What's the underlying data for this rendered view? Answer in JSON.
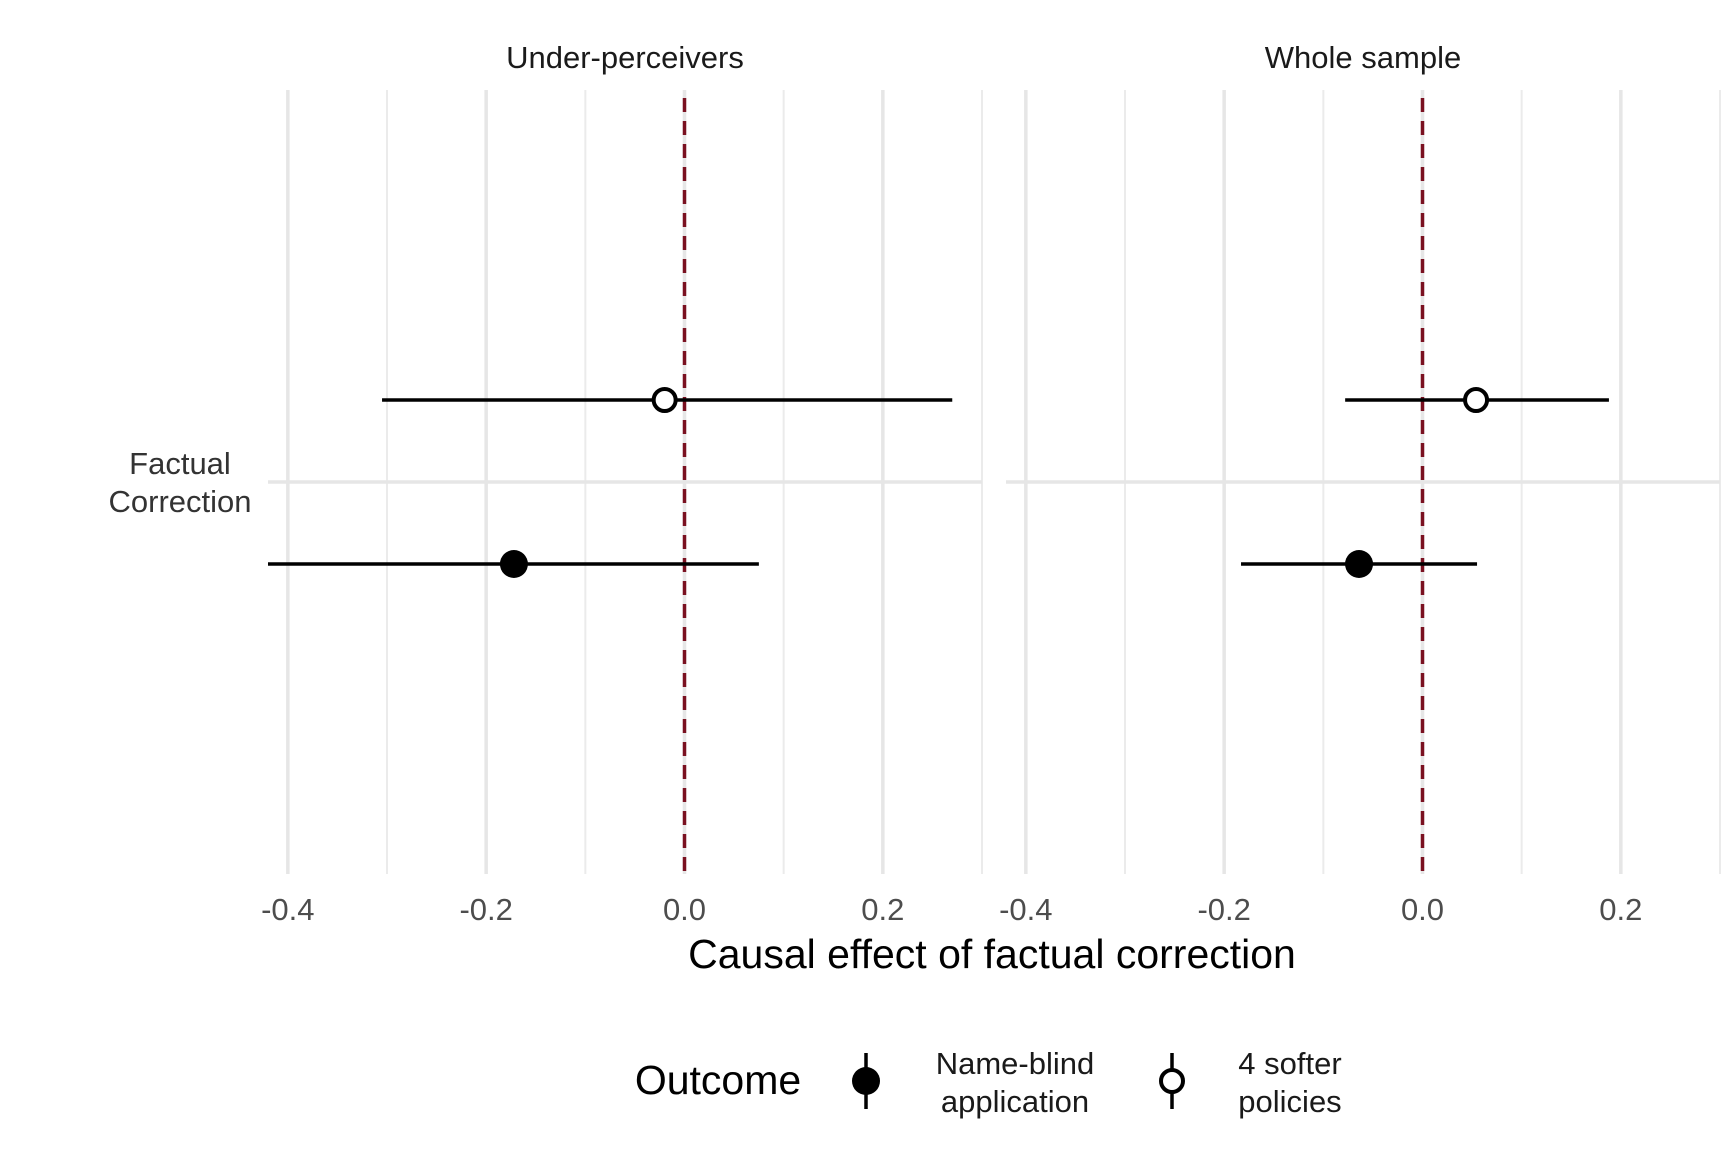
{
  "chart_data": {
    "type": "forest",
    "xlabel": "Causal effect of factual correction",
    "category": "Factual\nCorrection",
    "xlim": [
      -0.42,
      0.3
    ],
    "xticks": [
      -0.4,
      -0.2,
      0.0,
      0.2
    ],
    "xtick_labels": [
      "-0.4",
      "-0.2",
      "0.0",
      "0.2"
    ],
    "grid": true,
    "reference_line": {
      "x": 0.0,
      "color": "#7a1020",
      "style": "dashed"
    },
    "legend": {
      "title": "Outcome",
      "position": "bottom",
      "entries": [
        {
          "label": "Name-blind\napplication",
          "marker": "filled"
        },
        {
          "label": "4 softer\npolicies",
          "marker": "open"
        }
      ]
    },
    "panels": [
      {
        "title": "Under-perceivers",
        "points": [
          {
            "outcome": "4 softer\npolicies",
            "estimate": -0.02,
            "ci_low": -0.305,
            "ci_high": 0.27
          },
          {
            "outcome": "Name-blind\napplication",
            "estimate": -0.172,
            "ci_low": -0.42,
            "ci_high": 0.075
          }
        ]
      },
      {
        "title": "Whole sample",
        "points": [
          {
            "outcome": "4 softer\npolicies",
            "estimate": 0.054,
            "ci_low": -0.078,
            "ci_high": 0.188
          },
          {
            "outcome": "Name-blind\napplication",
            "estimate": -0.064,
            "ci_low": -0.183,
            "ci_high": 0.055
          }
        ]
      }
    ]
  }
}
